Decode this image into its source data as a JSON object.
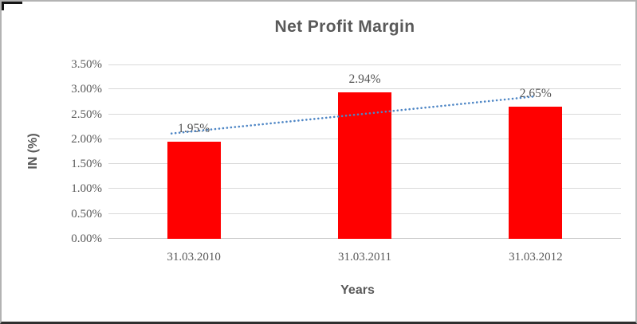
{
  "chart_data": {
    "type": "bar",
    "title": "Net Profit Margin",
    "xlabel": "Years",
    "ylabel": "IN (%)",
    "categories": [
      "31.03.2010",
      "31.03.2011",
      "31.03.2012"
    ],
    "values": [
      1.95,
      2.94,
      2.65
    ],
    "data_labels": [
      "1.95%",
      "2.94%",
      "2.65%"
    ],
    "yticks": [
      "0.00%",
      "0.50%",
      "1.00%",
      "1.50%",
      "2.00%",
      "2.50%",
      "3.00%",
      "3.50%"
    ],
    "ylim": [
      0,
      3.5
    ],
    "grid": true,
    "legend": "none",
    "bar_color": "#ff0000",
    "gridline_color": "#d9d9d9",
    "axis_line_color": "#cccccc",
    "text_color": "#595959",
    "trendline": {
      "type": "linear",
      "style": "dotted",
      "color": "#4e86c5",
      "y_at_first": 2.16,
      "y_at_last": 2.86
    }
  }
}
